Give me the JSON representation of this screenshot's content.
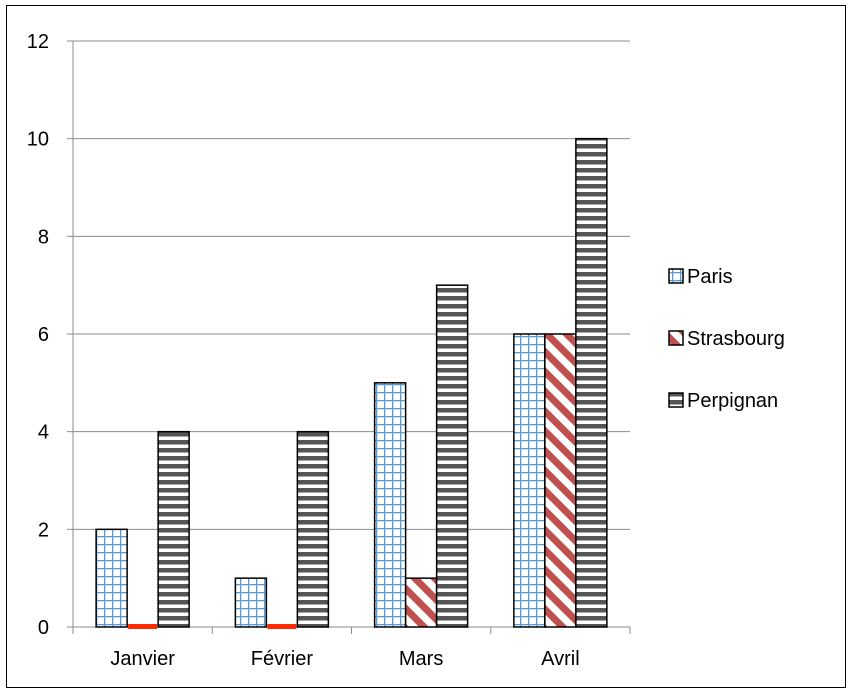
{
  "chart_data": {
    "type": "bar",
    "title": "",
    "xlabel": "",
    "ylabel": "",
    "categories": [
      "Janvier",
      "Février",
      "Mars",
      "Avril"
    ],
    "series": [
      {
        "name": "Paris",
        "values": [
          2,
          1,
          5,
          6
        ],
        "pattern": "grid",
        "color": "#5b9bd5"
      },
      {
        "name": "Strasbourg",
        "values": [
          0,
          0,
          1,
          6
        ],
        "pattern": "diagonal",
        "color": "#c0504d",
        "zero_marker_color": "#ff2a00"
      },
      {
        "name": "Perpignan",
        "values": [
          4,
          4,
          7,
          10
        ],
        "pattern": "horizontal",
        "color": "#555555"
      }
    ],
    "ylim": [
      0,
      12
    ],
    "yticks": [
      0,
      2,
      4,
      6,
      8,
      10,
      12
    ],
    "grid": true,
    "legend_position": "right"
  }
}
